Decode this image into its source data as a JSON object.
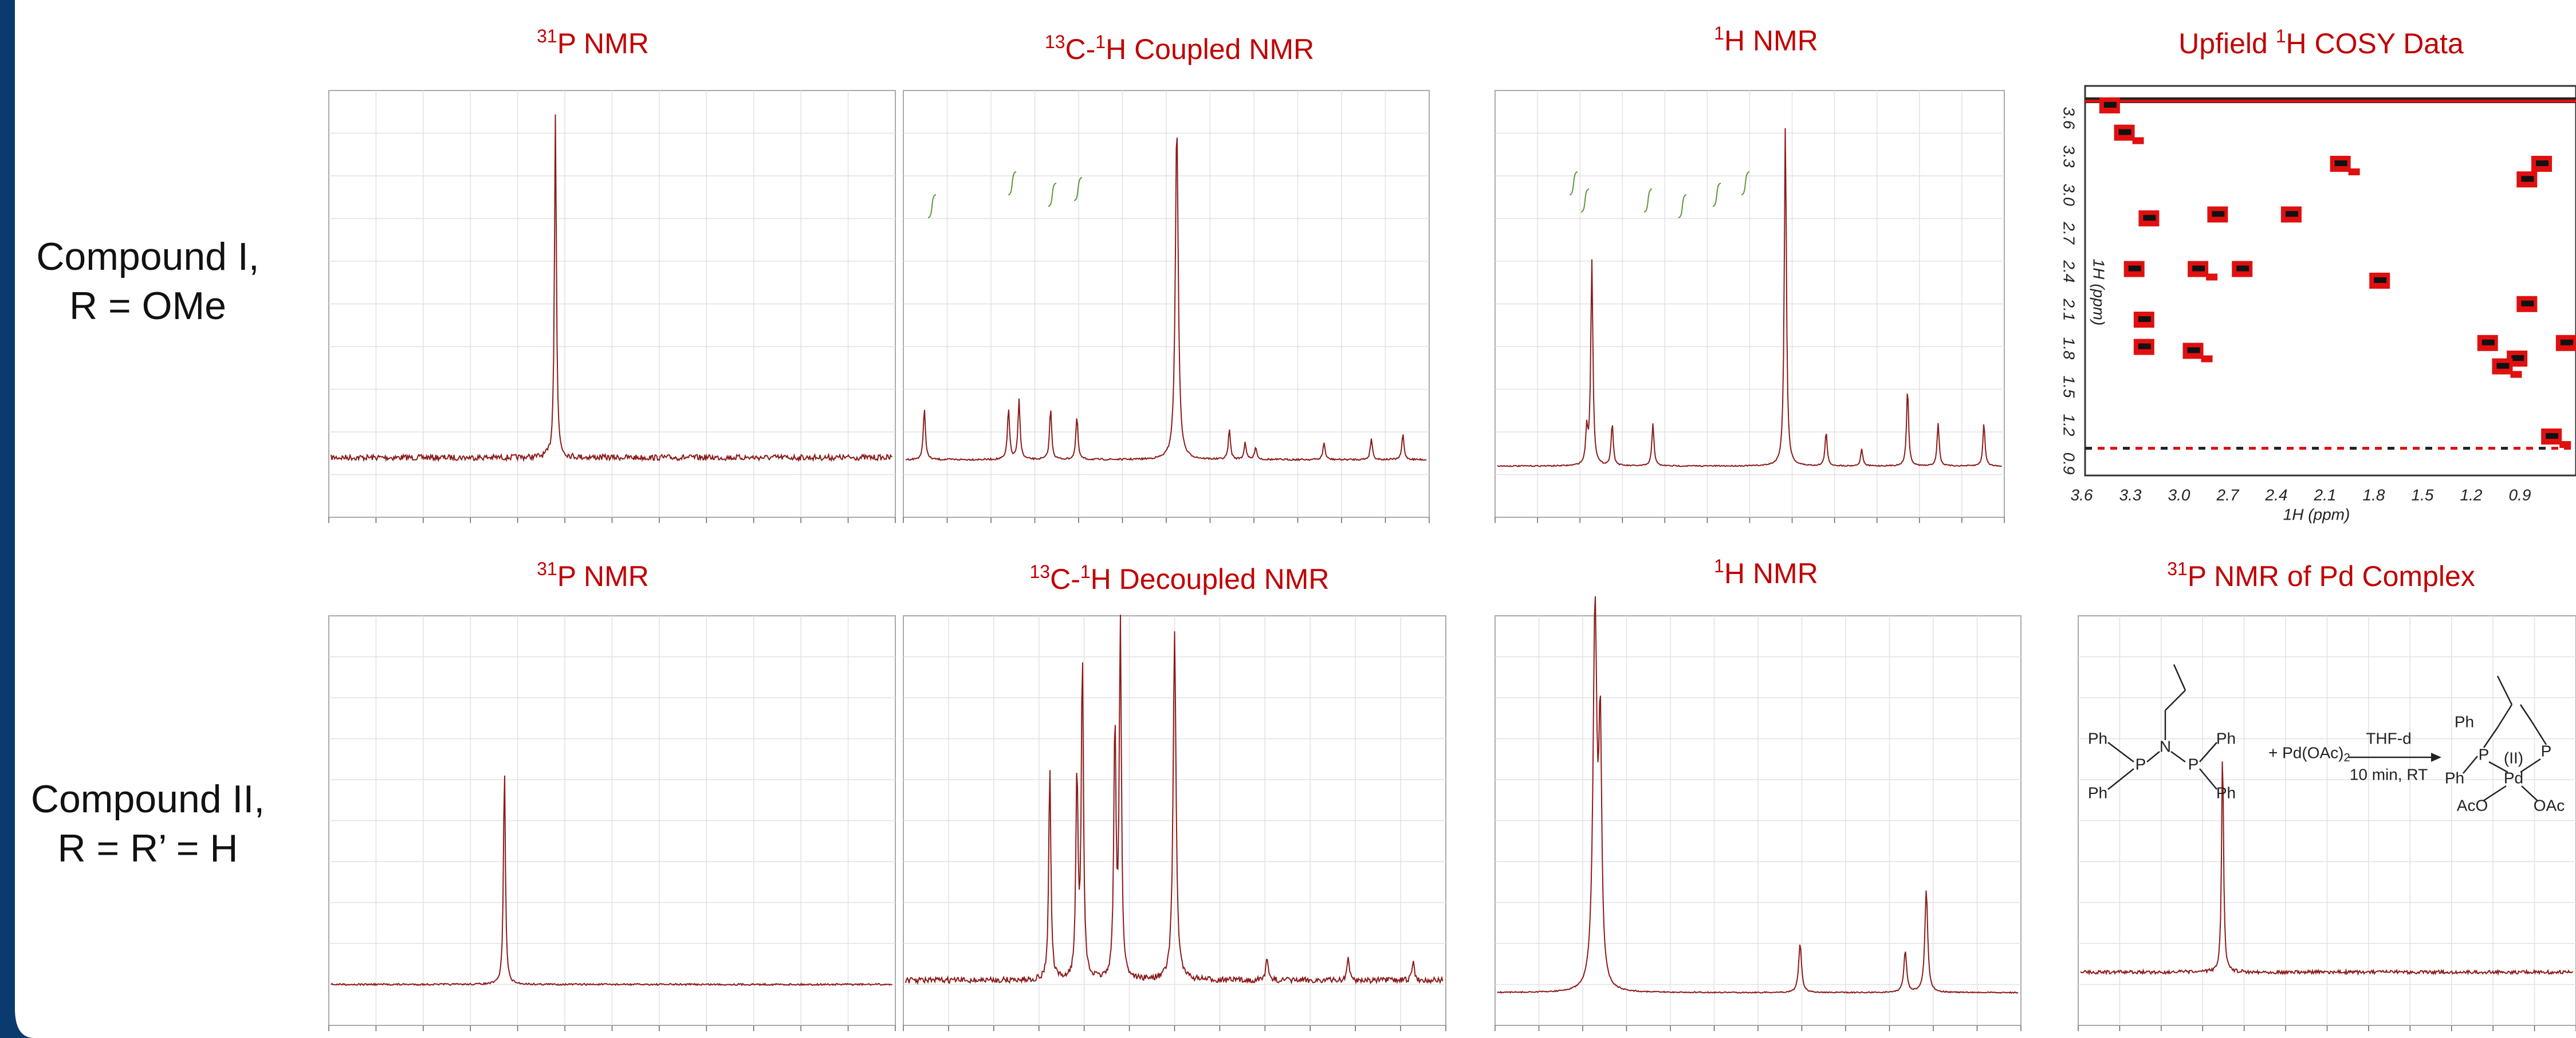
{
  "row_labels": [
    {
      "compound": "Compound I,",
      "substituent": "R = OMe"
    },
    {
      "compound": "Compound II,",
      "substituent": "R = R’ = H"
    }
  ],
  "headings": [
    {
      "parts": [
        {
          "sup": "31"
        },
        {
          "text": "P NMR"
        }
      ]
    },
    {
      "parts": [
        {
          "sup": "13"
        },
        {
          "text": "C-"
        },
        {
          "sup": "1"
        },
        {
          "text": "H Coupled NMR"
        }
      ]
    },
    {
      "parts": [
        {
          "sup": "1"
        },
        {
          "text": "H  NMR"
        }
      ]
    },
    {
      "parts": [
        {
          "text": "Upfield "
        },
        {
          "sup": "1"
        },
        {
          "text": "H COSY Data"
        }
      ]
    },
    {
      "parts": [
        {
          "sup": "31"
        },
        {
          "text": "P NMR"
        }
      ]
    },
    {
      "parts": [
        {
          "sup": "13"
        },
        {
          "text": "C-"
        },
        {
          "sup": "1"
        },
        {
          "text": "H Decoupled NMR"
        }
      ]
    },
    {
      "parts": [
        {
          "sup": "1"
        },
        {
          "text": "H  NMR"
        }
      ]
    },
    {
      "parts": [
        {
          "sup": "31"
        },
        {
          "text": "P  NMR of Pd Complex"
        }
      ]
    }
  ],
  "cosy": {
    "x_ticks": [
      "3.6",
      "3.3",
      "3.0",
      "2.7",
      "2.4",
      "2.1",
      "1.8",
      "1.5",
      "1.2",
      "0.9"
    ],
    "y_ticks": [
      "3.6",
      "3.3",
      "3.0",
      "2.7",
      "2.4",
      "2.1",
      "1.8",
      "1.5",
      "1.2",
      "0.9"
    ],
    "x_label": "1H (ppm)",
    "y_label": "1H (ppm)"
  },
  "scheme": {
    "ph": "Ph",
    "n": "N",
    "p": "P",
    "reagent": "+  Pd(OAc)",
    "subscript": "2",
    "solvent": "THF-d",
    "conditions": "10 min, RT",
    "metal": "Pd",
    "oxidation": "(II)",
    "aco": "AcO",
    "oac": "OAc"
  }
}
